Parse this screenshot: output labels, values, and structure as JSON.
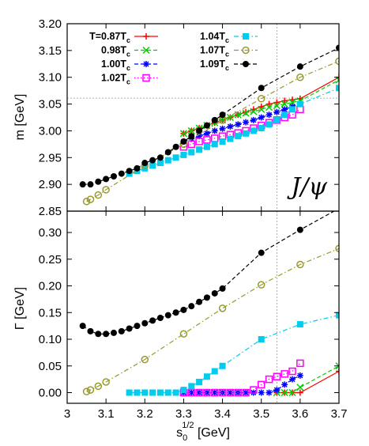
{
  "chart_data": [
    {
      "type": "line",
      "panel": "top",
      "ylabel": "m [GeV]",
      "xlim": [
        3.0,
        3.7
      ],
      "ylim": [
        2.85,
        3.2
      ],
      "yticks": [
        "2.85",
        "2.90",
        "2.95",
        "3.00",
        "3.05",
        "3.10",
        "3.15",
        "3.20"
      ],
      "annotation": "J/ψ",
      "reference_lines": {
        "x": 3.54,
        "y": 3.061
      },
      "legend": {
        "placement": "top-left"
      },
      "series": [
        {
          "name": "T=0.87Tc",
          "label_main": "T=0.87T",
          "label_sub": "c",
          "color": "#ff0000",
          "marker": "plus",
          "dash": "solid",
          "x": [
            3.3,
            3.32,
            3.34,
            3.36,
            3.38,
            3.4,
            3.42,
            3.44,
            3.46,
            3.48,
            3.5,
            3.52,
            3.54,
            3.56,
            3.58,
            3.6,
            3.7
          ],
          "y": [
            2.995,
            3.0,
            3.005,
            3.01,
            3.015,
            3.02,
            3.025,
            3.03,
            3.035,
            3.04,
            3.045,
            3.05,
            3.053,
            3.056,
            3.058,
            3.06,
            3.1
          ]
        },
        {
          "name": "0.98Tc",
          "label_main": "0.98T",
          "label_sub": "c",
          "color": "#00cc00",
          "marker": "x",
          "dash": "dash",
          "x": [
            3.3,
            3.32,
            3.34,
            3.36,
            3.38,
            3.4,
            3.42,
            3.44,
            3.46,
            3.48,
            3.5,
            3.52,
            3.54,
            3.56,
            3.58,
            3.6,
            3.7
          ],
          "y": [
            2.995,
            3.0,
            3.005,
            3.01,
            3.015,
            3.02,
            3.025,
            3.03,
            3.033,
            3.036,
            3.04,
            3.044,
            3.047,
            3.05,
            3.053,
            3.056,
            3.095
          ]
        },
        {
          "name": "1.00Tc",
          "label_main": "1.00T",
          "label_sub": "c",
          "color": "#0000ff",
          "marker": "star",
          "dash": "dash",
          "x": [
            3.3,
            3.32,
            3.34,
            3.36,
            3.38,
            3.4,
            3.42,
            3.44,
            3.46,
            3.48,
            3.5,
            3.52,
            3.54,
            3.56,
            3.58,
            3.6
          ],
          "y": [
            2.98,
            2.985,
            2.99,
            2.995,
            3.0,
            3.004,
            3.008,
            3.012,
            3.016,
            3.02,
            3.025,
            3.03,
            3.035,
            3.04,
            3.045,
            3.05
          ]
        },
        {
          "name": "1.02Tc",
          "label_main": "1.02T",
          "label_sub": "c",
          "color": "#ff00ff",
          "marker": "square-open",
          "dash": "dot",
          "x": [
            3.3,
            3.32,
            3.34,
            3.36,
            3.38,
            3.4,
            3.42,
            3.44,
            3.46,
            3.48,
            3.5,
            3.52,
            3.54,
            3.56,
            3.58,
            3.6
          ],
          "y": [
            2.97,
            2.975,
            2.98,
            2.983,
            2.986,
            2.99,
            2.993,
            2.996,
            3.0,
            3.005,
            3.01,
            3.015,
            3.02,
            3.025,
            3.03,
            3.04
          ]
        },
        {
          "name": "1.04Tc",
          "label_main": "1.04T",
          "label_sub": "c",
          "color": "#00ccee",
          "marker": "square",
          "dash": "dashdot",
          "x": [
            3.16,
            3.18,
            3.2,
            3.22,
            3.24,
            3.26,
            3.28,
            3.3,
            3.32,
            3.34,
            3.36,
            3.38,
            3.4,
            3.42,
            3.44,
            3.46,
            3.48,
            3.5,
            3.52,
            3.54,
            3.56,
            3.58,
            3.6,
            3.7
          ],
          "y": [
            2.92,
            2.925,
            2.93,
            2.935,
            2.94,
            2.945,
            2.95,
            2.955,
            2.96,
            2.965,
            2.97,
            2.975,
            2.98,
            2.985,
            2.99,
            2.995,
            3.0,
            3.005,
            3.012,
            3.02,
            3.03,
            3.04,
            3.05,
            3.08
          ]
        },
        {
          "name": "1.07Tc",
          "label_main": "1.07T",
          "label_sub": "c",
          "color": "#999933",
          "marker": "circle-open",
          "dash": "dashdot",
          "x": [
            3.05,
            3.06,
            3.08,
            3.1,
            3.2,
            3.3,
            3.4,
            3.5,
            3.6,
            3.7
          ],
          "y": [
            2.868,
            2.872,
            2.88,
            2.89,
            2.935,
            2.975,
            3.02,
            3.06,
            3.1,
            3.13
          ]
        },
        {
          "name": "1.09Tc",
          "label_main": "1.09T",
          "label_sub": "c",
          "color": "#000000",
          "marker": "circle",
          "dash": "dash",
          "x": [
            3.04,
            3.06,
            3.08,
            3.1,
            3.12,
            3.14,
            3.16,
            3.18,
            3.2,
            3.22,
            3.24,
            3.26,
            3.28,
            3.3,
            3.32,
            3.34,
            3.36,
            3.38,
            3.4,
            3.5,
            3.6,
            3.7
          ],
          "y": [
            2.9,
            2.9,
            2.905,
            2.91,
            2.915,
            2.92,
            2.925,
            2.93,
            2.94,
            2.945,
            2.95,
            2.96,
            2.97,
            2.98,
            2.99,
            3.0,
            3.01,
            3.02,
            3.03,
            3.08,
            3.12,
            3.155
          ]
        }
      ]
    },
    {
      "type": "line",
      "panel": "bottom",
      "xlabel_main": "s",
      "xlabel_sub": "0",
      "xlabel_sup": "1/2",
      "xlabel_unit": " [GeV]",
      "ylabel": "Γ [GeV]",
      "xlim": [
        3.0,
        3.7
      ],
      "ylim": [
        -0.02,
        0.34
      ],
      "xticks": [
        "3",
        "3.1",
        "3.2",
        "3.3",
        "3.4",
        "3.5",
        "3.6",
        "3.7"
      ],
      "yticks": [
        "0.00",
        "0.05",
        "0.10",
        "0.15",
        "0.20",
        "0.25",
        "0.30"
      ],
      "reference_lines": {
        "x": 3.54
      },
      "series": [
        {
          "name": "T=0.87Tc",
          "color": "#ff0000",
          "marker": "plus",
          "dash": "solid",
          "x": [
            3.54,
            3.56,
            3.58,
            3.6,
            3.7
          ],
          "y": [
            0.0,
            0.0,
            0.0,
            0.0,
            0.04
          ]
        },
        {
          "name": "0.98Tc",
          "color": "#00cc00",
          "marker": "x",
          "dash": "dash",
          "x": [
            3.54,
            3.56,
            3.58,
            3.6,
            3.7
          ],
          "y": [
            0.0,
            0.0,
            0.0,
            0.01,
            0.05
          ]
        },
        {
          "name": "1.00Tc",
          "color": "#0000ff",
          "marker": "star",
          "dash": "dash",
          "x": [
            3.3,
            3.32,
            3.34,
            3.36,
            3.38,
            3.4,
            3.42,
            3.44,
            3.46,
            3.48,
            3.5,
            3.52,
            3.54,
            3.56,
            3.58,
            3.6
          ],
          "y": [
            0.0,
            0.0,
            0.0,
            0.0,
            0.0,
            0.0,
            0.0,
            0.0,
            0.0,
            0.0,
            0.0,
            0.0,
            0.005,
            0.015,
            0.025,
            0.032
          ]
        },
        {
          "name": "1.02Tc",
          "color": "#ff00ff",
          "marker": "square-open",
          "dash": "dot",
          "x": [
            3.3,
            3.32,
            3.34,
            3.36,
            3.38,
            3.4,
            3.42,
            3.44,
            3.46,
            3.48,
            3.5,
            3.52,
            3.54,
            3.56,
            3.58,
            3.6
          ],
          "y": [
            0.0,
            0.0,
            0.0,
            0.0,
            0.0,
            0.0,
            0.0,
            0.0,
            0.0,
            0.005,
            0.015,
            0.025,
            0.03,
            0.035,
            0.04,
            0.055
          ]
        },
        {
          "name": "1.04Tc",
          "color": "#00ccee",
          "marker": "square",
          "dash": "dashdot",
          "x": [
            3.16,
            3.18,
            3.2,
            3.22,
            3.24,
            3.26,
            3.28,
            3.3,
            3.32,
            3.34,
            3.36,
            3.38,
            3.4,
            3.5,
            3.6,
            3.7
          ],
          "y": [
            0.0,
            0.0,
            0.0,
            0.0,
            0.0,
            0.0,
            0.0,
            0.005,
            0.012,
            0.02,
            0.03,
            0.04,
            0.05,
            0.1,
            0.128,
            0.145
          ]
        },
        {
          "name": "1.07Tc",
          "color": "#999933",
          "marker": "circle-open",
          "dash": "dashdot",
          "x": [
            3.05,
            3.06,
            3.08,
            3.1,
            3.2,
            3.3,
            3.4,
            3.5,
            3.6,
            3.7
          ],
          "y": [
            0.002,
            0.005,
            0.012,
            0.02,
            0.062,
            0.11,
            0.158,
            0.202,
            0.24,
            0.27
          ]
        },
        {
          "name": "1.09Tc",
          "color": "#000000",
          "marker": "circle",
          "dash": "dash",
          "x": [
            3.04,
            3.06,
            3.08,
            3.1,
            3.12,
            3.14,
            3.16,
            3.18,
            3.2,
            3.22,
            3.24,
            3.26,
            3.28,
            3.3,
            3.32,
            3.34,
            3.36,
            3.38,
            3.4,
            3.5,
            3.6,
            3.7
          ],
          "y": [
            0.125,
            0.115,
            0.11,
            0.11,
            0.112,
            0.115,
            0.12,
            0.125,
            0.13,
            0.135,
            0.14,
            0.145,
            0.15,
            0.155,
            0.162,
            0.17,
            0.178,
            0.186,
            0.195,
            0.262,
            0.305,
            0.345
          ]
        }
      ]
    }
  ]
}
